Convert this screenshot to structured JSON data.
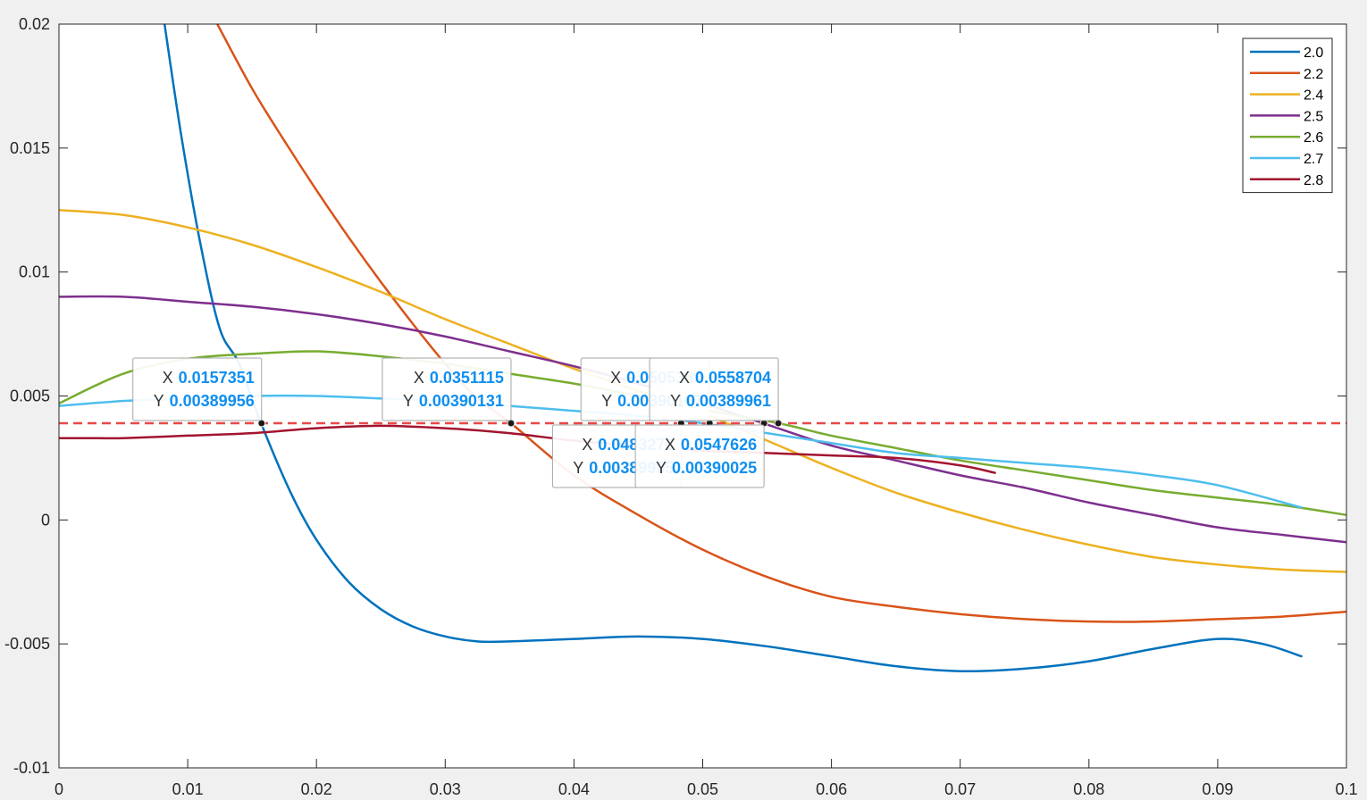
{
  "chart_data": {
    "type": "line",
    "title": "",
    "xlabel": "",
    "ylabel": "",
    "xlim": [
      0,
      0.1
    ],
    "ylim": [
      -0.01,
      0.02
    ],
    "x_ticks": [
      {
        "value": 0,
        "label": "0"
      },
      {
        "value": 0.01,
        "label": "0.01"
      },
      {
        "value": 0.02,
        "label": "0.02"
      },
      {
        "value": 0.03,
        "label": "0.03"
      },
      {
        "value": 0.04,
        "label": "0.04"
      },
      {
        "value": 0.05,
        "label": "0.05"
      },
      {
        "value": 0.06,
        "label": "0.06"
      },
      {
        "value": 0.07,
        "label": "0.07"
      },
      {
        "value": 0.08,
        "label": "0.08"
      },
      {
        "value": 0.09,
        "label": "0.09"
      },
      {
        "value": 0.1,
        "label": "0.1"
      }
    ],
    "y_ticks": [
      {
        "value": -0.01,
        "label": "-0.01"
      },
      {
        "value": -0.005,
        "label": "-0.005"
      },
      {
        "value": 0,
        "label": "0"
      },
      {
        "value": 0.005,
        "label": "0.005"
      },
      {
        "value": 0.01,
        "label": "0.01"
      },
      {
        "value": 0.015,
        "label": "0.015"
      },
      {
        "value": 0.02,
        "label": "0.02"
      }
    ],
    "grid": false,
    "legend_position": "top-right",
    "series": [
      {
        "name": "2.0",
        "color": "#0072BD",
        "points": [
          [
            0.0082,
            0.02
          ],
          [
            0.0095,
            0.0155
          ],
          [
            0.011,
            0.0111
          ],
          [
            0.0125,
            0.0077
          ],
          [
            0.014,
            0.0063
          ],
          [
            0.0157,
            0.0039
          ],
          [
            0.018,
            0.0011
          ],
          [
            0.02,
            -0.0008
          ],
          [
            0.0225,
            -0.0025
          ],
          [
            0.025,
            -0.0036
          ],
          [
            0.0275,
            -0.0043
          ],
          [
            0.03,
            -0.0047
          ],
          [
            0.0325,
            -0.0049
          ],
          [
            0.035,
            -0.0049
          ],
          [
            0.04,
            -0.0048
          ],
          [
            0.045,
            -0.0047
          ],
          [
            0.05,
            -0.0048
          ],
          [
            0.055,
            -0.0051
          ],
          [
            0.06,
            -0.0055
          ],
          [
            0.065,
            -0.0059
          ],
          [
            0.07,
            -0.0061
          ],
          [
            0.075,
            -0.006
          ],
          [
            0.08,
            -0.0057
          ],
          [
            0.085,
            -0.0052
          ],
          [
            0.09,
            -0.0048
          ],
          [
            0.0935,
            -0.005
          ],
          [
            0.0965,
            -0.0055
          ]
        ]
      },
      {
        "name": "2.2",
        "color": "#D95319",
        "points": [
          [
            0.0123,
            0.02
          ],
          [
            0.015,
            0.0174
          ],
          [
            0.0175,
            0.0153
          ],
          [
            0.02,
            0.0133
          ],
          [
            0.0225,
            0.0114
          ],
          [
            0.025,
            0.0096
          ],
          [
            0.0275,
            0.0079
          ],
          [
            0.03,
            0.0063
          ],
          [
            0.0325,
            0.0049
          ],
          [
            0.0351,
            0.0039
          ],
          [
            0.04,
            0.0018
          ],
          [
            0.045,
            0.0002
          ],
          [
            0.05,
            -0.0012
          ],
          [
            0.055,
            -0.0023
          ],
          [
            0.06,
            -0.0031
          ],
          [
            0.065,
            -0.0035
          ],
          [
            0.07,
            -0.0038
          ],
          [
            0.075,
            -0.004
          ],
          [
            0.08,
            -0.0041
          ],
          [
            0.085,
            -0.0041
          ],
          [
            0.09,
            -0.004
          ],
          [
            0.095,
            -0.0039
          ],
          [
            0.1,
            -0.0037
          ]
        ]
      },
      {
        "name": "2.4",
        "color": "#EDB120",
        "points": [
          [
            0,
            0.0125
          ],
          [
            0.005,
            0.0123
          ],
          [
            0.01,
            0.0118
          ],
          [
            0.015,
            0.0111
          ],
          [
            0.02,
            0.0102
          ],
          [
            0.025,
            0.0092
          ],
          [
            0.03,
            0.0081
          ],
          [
            0.035,
            0.0071
          ],
          [
            0.04,
            0.0061
          ],
          [
            0.045,
            0.0052
          ],
          [
            0.05,
            0.0043
          ],
          [
            0.055,
            0.0032
          ],
          [
            0.06,
            0.0021
          ],
          [
            0.065,
            0.0011
          ],
          [
            0.07,
            0.0003
          ],
          [
            0.075,
            -0.0004
          ],
          [
            0.08,
            -0.001
          ],
          [
            0.085,
            -0.0015
          ],
          [
            0.09,
            -0.0018
          ],
          [
            0.095,
            -0.002
          ],
          [
            0.1,
            -0.0021
          ]
        ]
      },
      {
        "name": "2.5",
        "color": "#7E2F8E",
        "points": [
          [
            0,
            0.009
          ],
          [
            0.005,
            0.009
          ],
          [
            0.01,
            0.0088
          ],
          [
            0.015,
            0.0086
          ],
          [
            0.02,
            0.0083
          ],
          [
            0.025,
            0.0079
          ],
          [
            0.03,
            0.0074
          ],
          [
            0.035,
            0.0068
          ],
          [
            0.04,
            0.0062
          ],
          [
            0.045,
            0.0055
          ],
          [
            0.05,
            0.0047
          ],
          [
            0.0547,
            0.0039
          ],
          [
            0.06,
            0.003
          ],
          [
            0.065,
            0.0024
          ],
          [
            0.07,
            0.0018
          ],
          [
            0.075,
            0.0013
          ],
          [
            0.08,
            0.0007
          ],
          [
            0.085,
            0.0002
          ],
          [
            0.09,
            -0.0003
          ],
          [
            0.095,
            -0.0006
          ],
          [
            0.1,
            -0.0009
          ]
        ]
      },
      {
        "name": "2.6",
        "color": "#77AC30",
        "points": [
          [
            0,
            0.0047
          ],
          [
            0.005,
            0.0059
          ],
          [
            0.01,
            0.0065
          ],
          [
            0.015,
            0.0067
          ],
          [
            0.02,
            0.0068
          ],
          [
            0.025,
            0.0066
          ],
          [
            0.03,
            0.0063
          ],
          [
            0.035,
            0.0059
          ],
          [
            0.04,
            0.0055
          ],
          [
            0.045,
            0.005
          ],
          [
            0.0505,
            0.0044
          ],
          [
            0.0559,
            0.0039
          ],
          [
            0.06,
            0.0034
          ],
          [
            0.065,
            0.0029
          ],
          [
            0.07,
            0.0024
          ],
          [
            0.075,
            0.002
          ],
          [
            0.08,
            0.0016
          ],
          [
            0.085,
            0.0012
          ],
          [
            0.09,
            0.0009
          ],
          [
            0.095,
            0.0006
          ],
          [
            0.1,
            0.0002
          ]
        ]
      },
      {
        "name": "2.7",
        "color": "#4DBEEE",
        "points": [
          [
            0,
            0.0046
          ],
          [
            0.005,
            0.0048
          ],
          [
            0.01,
            0.0049
          ],
          [
            0.015,
            0.005
          ],
          [
            0.02,
            0.005
          ],
          [
            0.025,
            0.0049
          ],
          [
            0.03,
            0.0048
          ],
          [
            0.035,
            0.0046
          ],
          [
            0.04,
            0.0044
          ],
          [
            0.045,
            0.0042
          ],
          [
            0.05,
            0.0039
          ],
          [
            0.055,
            0.0035
          ],
          [
            0.06,
            0.0031
          ],
          [
            0.065,
            0.0027
          ],
          [
            0.07,
            0.0025
          ],
          [
            0.075,
            0.0023
          ],
          [
            0.08,
            0.0021
          ],
          [
            0.085,
            0.0018
          ],
          [
            0.09,
            0.0014
          ],
          [
            0.0965,
            0.0005
          ]
        ]
      },
      {
        "name": "2.8",
        "color": "#A2142F",
        "points": [
          [
            0,
            0.0033
          ],
          [
            0.003,
            0.0033
          ],
          [
            0.005,
            0.0033
          ],
          [
            0.01,
            0.0034
          ],
          [
            0.015,
            0.0035
          ],
          [
            0.02,
            0.0037
          ],
          [
            0.025,
            0.0038
          ],
          [
            0.03,
            0.0037
          ],
          [
            0.035,
            0.0035
          ],
          [
            0.04,
            0.0032
          ],
          [
            0.045,
            0.003
          ],
          [
            0.05,
            0.0028
          ],
          [
            0.055,
            0.0027
          ],
          [
            0.06,
            0.0026
          ],
          [
            0.065,
            0.0025
          ],
          [
            0.07,
            0.0022
          ],
          [
            0.0727,
            0.0019
          ]
        ]
      }
    ],
    "reference_line": {
      "y": 0.0039,
      "color": "#E84848",
      "style": "dashed"
    },
    "datatips": [
      {
        "x_label": "X",
        "y_label": "Y",
        "x_value": "0.0157351",
        "y_value": "0.00389956",
        "x": 0.0157351,
        "y": 0.00389956,
        "placement": "above"
      },
      {
        "x_label": "X",
        "y_label": "Y",
        "x_value": "0.0351115",
        "y_value": "0.00390131",
        "x": 0.0351115,
        "y": 0.00390131,
        "placement": "above"
      },
      {
        "x_label": "X",
        "y_label": "Y",
        "x_value": "0.0483278",
        "y_value": "0.00389995",
        "x": 0.0483278,
        "y": 0.00389995,
        "placement": "below"
      },
      {
        "x_label": "X",
        "y_label": "Y",
        "x_value": "0.0505368",
        "y_value": "0.00390167",
        "x": 0.0505368,
        "y": 0.00390167,
        "placement": "above"
      },
      {
        "x_label": "X",
        "y_label": "Y",
        "x_value": "0.0547626",
        "y_value": "0.00390025",
        "x": 0.0547626,
        "y": 0.00390025,
        "placement": "below"
      },
      {
        "x_label": "X",
        "y_label": "Y",
        "x_value": "0.0558704",
        "y_value": "0.00389961",
        "x": 0.0558704,
        "y": 0.00389961,
        "placement": "above"
      }
    ]
  }
}
